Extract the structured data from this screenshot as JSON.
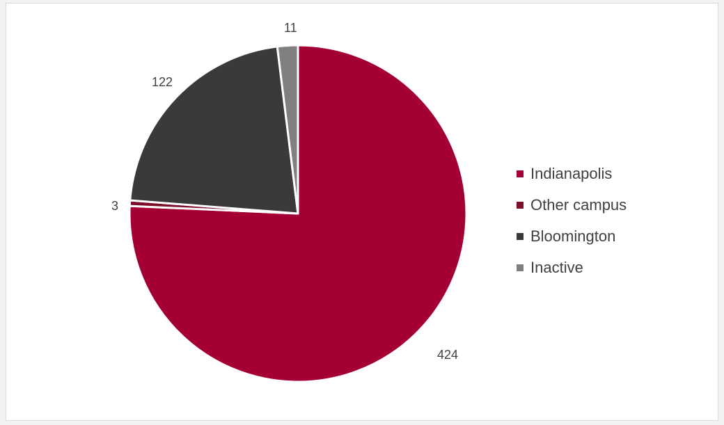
{
  "chart_data": {
    "type": "pie",
    "title": "",
    "slices": [
      {
        "label": "Indianapolis",
        "value": 424,
        "color": "#a50034"
      },
      {
        "label": "Other campus",
        "value": 3,
        "color": "#7d0f2b"
      },
      {
        "label": "Bloomington",
        "value": 122,
        "color": "#3a3a3a"
      },
      {
        "label": "Inactive",
        "value": 11,
        "color": "#808080"
      }
    ],
    "data_labels": [
      "424",
      "3",
      "122",
      "11"
    ],
    "legend_position": "right",
    "slice_border_color": "#ffffff"
  }
}
